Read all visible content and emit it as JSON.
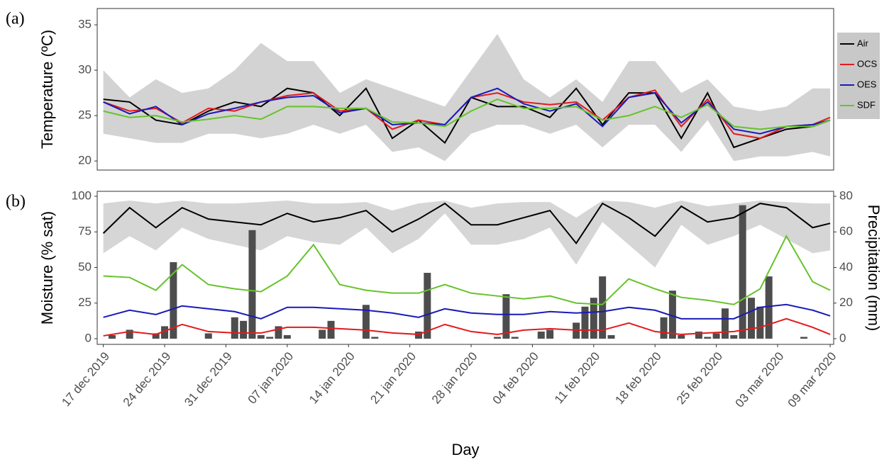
{
  "chart_data": [
    {
      "type": "line",
      "panel_label": "(a)",
      "ylabel": "Temperature (ºC)",
      "legend": "right",
      "x": [
        0,
        3,
        6,
        9,
        12,
        15,
        18,
        21,
        24,
        27,
        30,
        33,
        36,
        39,
        42,
        45,
        48,
        51,
        54,
        57,
        60,
        63,
        66,
        69,
        72,
        75,
        78,
        81,
        83
      ],
      "xlim": [
        -0.7,
        83.4
      ],
      "ylim": [
        19,
        36.8
      ],
      "yticks": [
        20,
        25,
        30,
        35
      ],
      "band": {
        "color": "#c8c8c8",
        "upper": [
          30,
          27,
          29,
          27.5,
          28,
          30,
          33,
          31,
          31,
          27.5,
          29,
          28,
          27,
          26,
          30,
          34,
          29,
          27,
          29,
          26.5,
          31,
          31,
          27.5,
          29,
          26,
          25.5,
          26,
          28,
          28
        ],
        "lower": [
          23,
          22.5,
          22,
          22,
          23,
          23,
          22.5,
          23,
          24,
          23,
          24,
          21,
          21.5,
          20,
          23,
          24,
          24,
          23,
          24,
          21.5,
          24,
          24,
          21,
          24.5,
          20,
          20.5,
          20.5,
          21,
          20.5
        ]
      },
      "series": [
        {
          "name": "Air",
          "color": "#000000",
          "values": [
            26.8,
            26.5,
            24.5,
            24,
            25.5,
            26.5,
            26,
            28,
            27.5,
            25,
            28,
            22.5,
            24.5,
            22,
            27,
            26,
            26,
            24.8,
            28,
            24,
            27.5,
            27.5,
            22.5,
            27.5,
            21.5,
            22.5,
            23.5,
            23.8,
            24.5
          ]
        },
        {
          "name": "OCS",
          "color": "#e41a1c",
          "values": [
            26.5,
            25.5,
            25.8,
            24.2,
            25.8,
            25.5,
            26.5,
            27.2,
            27.5,
            25.5,
            25.8,
            23.5,
            24.5,
            24,
            27,
            27.5,
            26.5,
            26.2,
            26.5,
            24.5,
            27,
            27.8,
            23.8,
            26.8,
            23,
            22.5,
            23.8,
            24,
            24.8
          ]
        },
        {
          "name": "OES",
          "color": "#1a1ab8",
          "values": [
            26.5,
            25.2,
            26,
            24,
            25.2,
            25.8,
            26.5,
            27,
            27.2,
            25.3,
            25.8,
            24,
            24.2,
            24,
            27,
            28,
            26.3,
            25.5,
            26.3,
            23.8,
            27,
            27.5,
            24.2,
            26.5,
            23.5,
            23,
            23.8,
            24,
            24.5
          ]
        },
        {
          "name": "SDF",
          "color": "#66c32c",
          "values": [
            25.5,
            24.8,
            25,
            24.3,
            24.6,
            25,
            24.6,
            26,
            26,
            25.8,
            25.8,
            24.3,
            24.2,
            23.8,
            25.5,
            26.8,
            25.8,
            25.8,
            26,
            24.5,
            25,
            26,
            24.8,
            26.2,
            23.8,
            23.5,
            23.8,
            23.8,
            24.5
          ]
        }
      ]
    },
    {
      "type": "line",
      "panel_label": "(b)",
      "ylabel": "Moisture (% sat)",
      "y2label": "Precipitation (mm)",
      "xlabel": "Day",
      "x": [
        0,
        3,
        6,
        9,
        12,
        15,
        18,
        21,
        24,
        27,
        30,
        33,
        36,
        39,
        42,
        45,
        48,
        51,
        54,
        57,
        60,
        63,
        66,
        69,
        72,
        75,
        78,
        81,
        83
      ],
      "xlim": [
        -0.7,
        83.4
      ],
      "ylim": [
        -4,
        103.5
      ],
      "yticks": [
        0,
        25,
        50,
        75,
        100
      ],
      "y2lim": [
        -3.2,
        82.8
      ],
      "y2ticks": [
        0,
        20,
        40,
        60,
        80
      ],
      "xticks": [
        {
          "value": 0,
          "label": "17 dec 2019"
        },
        {
          "value": 7,
          "label": "24 dec 2019"
        },
        {
          "value": 14,
          "label": "31 dec 2019"
        },
        {
          "value": 21,
          "label": "07 jan 2020"
        },
        {
          "value": 28,
          "label": "14 jan 2020"
        },
        {
          "value": 35,
          "label": "21 jan 2020"
        },
        {
          "value": 42,
          "label": "28 jan 2020"
        },
        {
          "value": 49,
          "label": "04 feb 2020"
        },
        {
          "value": 56,
          "label": "11 feb 2020"
        },
        {
          "value": 63,
          "label": "18 feb 2020"
        },
        {
          "value": 70,
          "label": "25 feb 2020"
        },
        {
          "value": 77,
          "label": "03 mar 2020"
        },
        {
          "value": 83,
          "label": "09 mar 2020"
        }
      ],
      "band": {
        "color": "#cccccc",
        "upper": [
          95,
          97,
          95,
          97,
          95,
          95,
          96,
          97,
          95,
          95,
          96,
          90,
          95,
          97,
          92,
          95,
          96,
          96,
          85,
          97,
          96,
          92,
          97,
          93,
          95,
          97,
          96,
          95,
          95
        ],
        "lower": [
          60,
          72,
          62,
          78,
          70,
          66,
          62,
          72,
          68,
          66,
          78,
          60,
          70,
          88,
          66,
          66,
          70,
          78,
          52,
          82,
          66,
          50,
          80,
          66,
          72,
          80,
          70,
          60,
          62
        ]
      },
      "bars": {
        "color": "#4d4d4d",
        "axis": "y2",
        "x": [
          1,
          3,
          6,
          7,
          8,
          12,
          15,
          16,
          17,
          18,
          19,
          20,
          21,
          25,
          26,
          30,
          31,
          36,
          37,
          45,
          46,
          47,
          50,
          51,
          54,
          55,
          56,
          57,
          58,
          64,
          65,
          66,
          68,
          69,
          70,
          71,
          72,
          73,
          74,
          75,
          76,
          80
        ],
        "values": [
          2,
          5,
          3,
          7,
          43,
          3,
          12,
          10,
          61,
          2,
          1,
          7,
          2,
          5,
          10,
          19,
          1,
          4,
          37,
          1,
          25,
          1,
          4,
          5,
          9,
          18,
          23,
          35,
          2,
          12,
          27,
          2,
          4,
          1,
          3,
          17,
          2,
          75,
          23,
          18,
          35,
          1
        ]
      },
      "series": [
        {
          "color": "#000000",
          "values": [
            74,
            92,
            78,
            92,
            84,
            82,
            80,
            88,
            82,
            85,
            90,
            75,
            84,
            95,
            80,
            80,
            85,
            90,
            67,
            95,
            85,
            72,
            93,
            82,
            85,
            95,
            92,
            78,
            81
          ]
        },
        {
          "color": "#66c32c",
          "values": [
            44,
            43,
            34,
            52,
            38,
            35,
            33,
            44,
            66,
            38,
            34,
            32,
            32,
            38,
            32,
            30,
            28,
            30,
            25,
            24,
            42,
            35,
            29,
            27,
            24,
            35,
            72,
            40,
            34
          ]
        },
        {
          "color": "#1a1ab8",
          "values": [
            15,
            20,
            17,
            23,
            21,
            19,
            14,
            22,
            22,
            21,
            20,
            18,
            15,
            21,
            18,
            17,
            17,
            19,
            18,
            19,
            22,
            20,
            14,
            14,
            14,
            22,
            24,
            20,
            16
          ]
        },
        {
          "color": "#e41a1c",
          "values": [
            2,
            5,
            3,
            10,
            5,
            4,
            4,
            8,
            8,
            7,
            6,
            4,
            3,
            10,
            5,
            3,
            6,
            7,
            6,
            6,
            11,
            5,
            3,
            4,
            5,
            8,
            14,
            8,
            3
          ]
        }
      ]
    }
  ]
}
